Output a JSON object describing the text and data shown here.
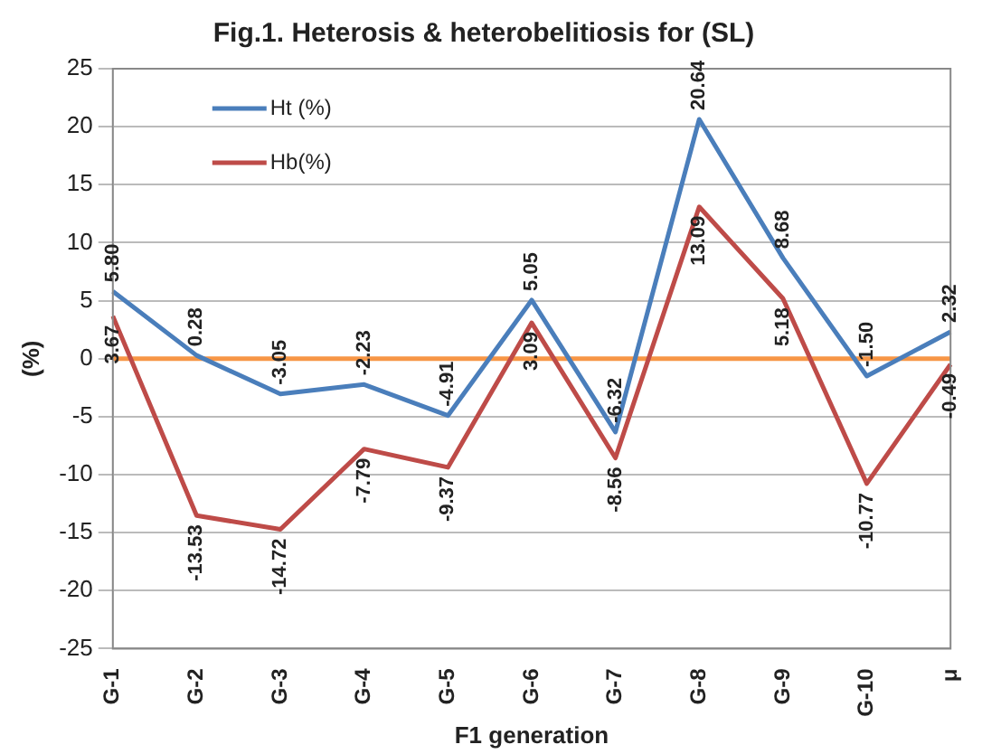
{
  "chart_data": {
    "type": "line",
    "title": "Fig.1. Heterosis & heterobelitiosis for (SL)",
    "xlabel": "F1 generation",
    "ylabel": "(%)",
    "categories": [
      "G-1",
      "G-2",
      "G-3",
      "G-4",
      "G-5",
      "G-6",
      "G-7",
      "G-8",
      "G-9",
      "G-10",
      "μ"
    ],
    "series": [
      {
        "name": "Ht (%)",
        "color": "#4a7ebb",
        "values": [
          5.8,
          0.28,
          -3.05,
          -2.23,
          -4.91,
          5.05,
          -6.32,
          20.64,
          8.68,
          -1.5,
          2.32
        ],
        "value_labels": [
          "5.80",
          "0.28",
          "-3.05",
          "-2.23",
          "-4.91",
          "5.05",
          "-6.32",
          "20.64",
          "8.68",
          "-1.50",
          "2.32"
        ]
      },
      {
        "name": "Hb(%)",
        "color": "#be4b48",
        "values": [
          3.67,
          -13.53,
          -14.72,
          -7.79,
          -9.37,
          3.09,
          -8.56,
          13.09,
          5.18,
          -10.77,
          -0.49
        ],
        "value_labels": [
          "3.67",
          "-13.53",
          "-14.72",
          "-7.79",
          "-9.37",
          "3.09",
          "-8.56",
          "13.09",
          "5.18",
          "-10.77",
          "-0.49"
        ]
      }
    ],
    "ylim": [
      -25,
      25
    ],
    "yticks": [
      -25,
      -20,
      -15,
      -10,
      -5,
      0,
      5,
      10,
      15,
      20,
      25
    ],
    "grid": "y",
    "legend": "top left",
    "marker": "none",
    "line_style": "solid",
    "ref_lines": [
      {
        "axis": "y",
        "value": 0,
        "color": "#f79646"
      }
    ]
  }
}
